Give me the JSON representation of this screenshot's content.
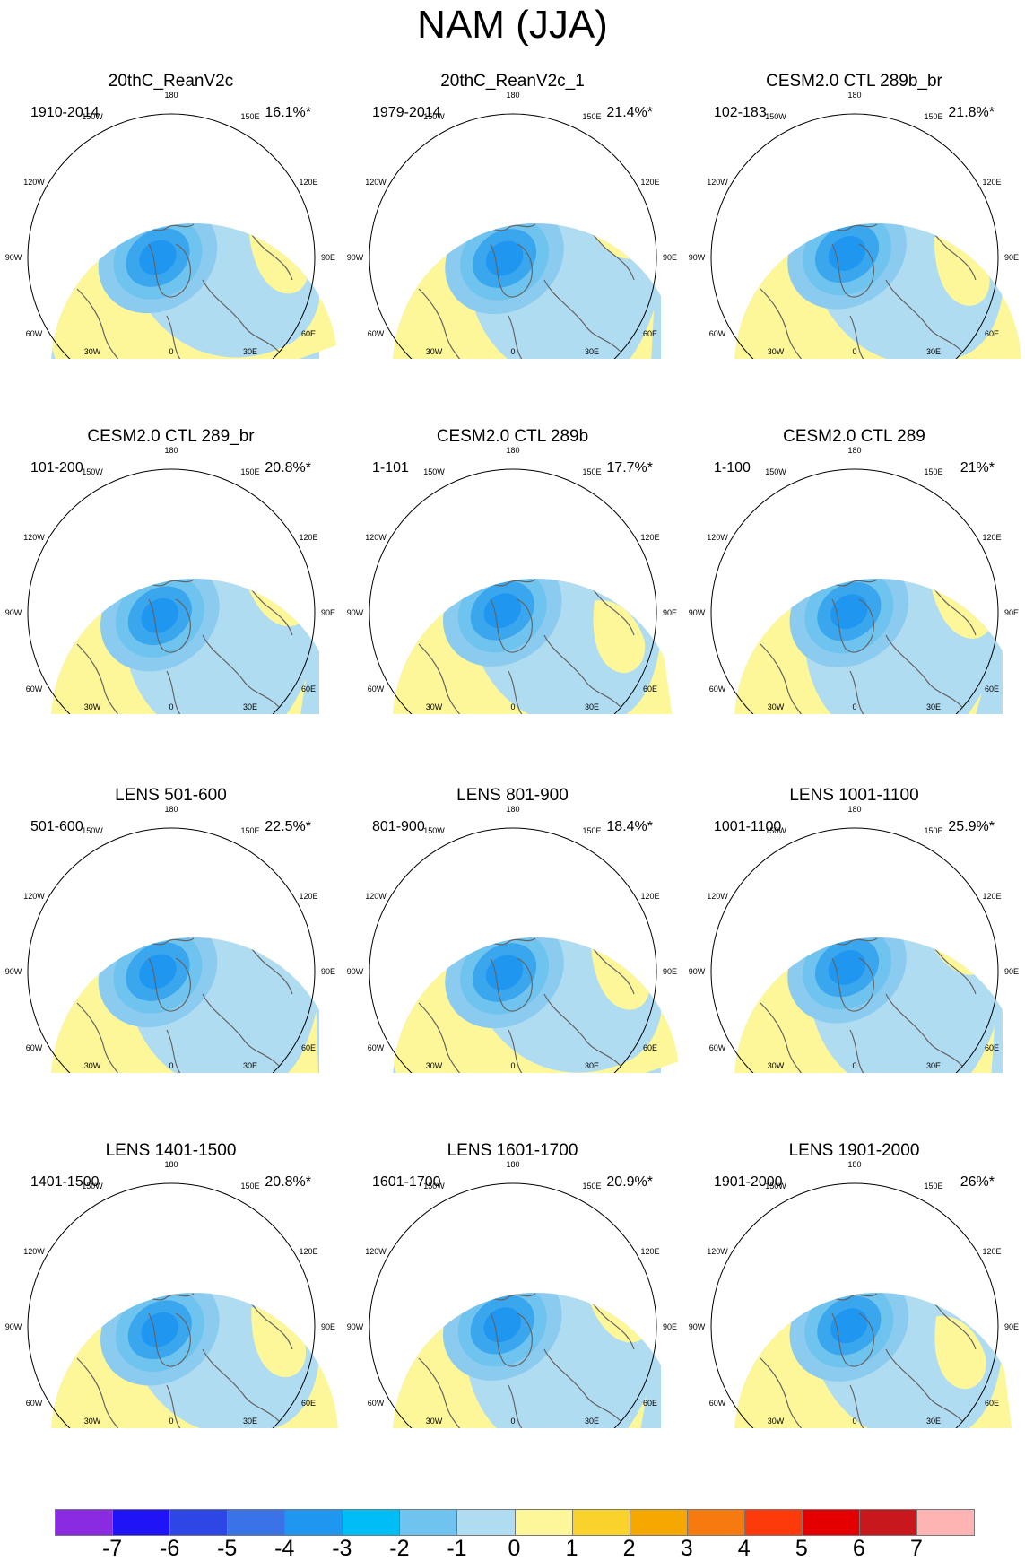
{
  "title": "NAM (JJA)",
  "chart_data": {
    "type": "heatmap",
    "projection": "north polar stereographic",
    "variable": "NAM (JJA)",
    "panels": [
      {
        "title": "20thC_ReanV2c",
        "period": "1910-2014",
        "variance": "16.1%*"
      },
      {
        "title": "20thC_ReanV2c_1",
        "period": "1979-2014",
        "variance": "21.4%*"
      },
      {
        "title": "CESM2.0 CTL 289b_br",
        "period": "102-183",
        "variance": "21.8%*"
      },
      {
        "title": "CESM2.0 CTL 289_br",
        "period": "101-200",
        "variance": "20.8%*"
      },
      {
        "title": "CESM2.0 CTL 289b",
        "period": "1-101",
        "variance": "17.7%*"
      },
      {
        "title": "CESM2.0 CTL 289",
        "period": "1-100",
        "variance": "21%*"
      },
      {
        "title": "LENS 501-600",
        "period": "501-600",
        "variance": "22.5%*"
      },
      {
        "title": "LENS 801-900",
        "period": "801-900",
        "variance": "18.4%*"
      },
      {
        "title": "LENS 1001-1100",
        "period": "1001-1100",
        "variance": "25.9%*"
      },
      {
        "title": "LENS 1401-1500",
        "period": "1401-1500",
        "variance": "20.8%*"
      },
      {
        "title": "LENS 1601-1700",
        "period": "1601-1700",
        "variance": "20.9%*"
      },
      {
        "title": "LENS 1901-2000",
        "period": "1901-2000",
        "variance": "26%*"
      }
    ],
    "map_labels": {
      "top": "180",
      "bottom": "0",
      "left": "90W",
      "right": "90E",
      "ul1": "150W",
      "ur1": "150E",
      "ul2": "120W",
      "ur2": "120E",
      "ll1": "60W",
      "lr1": "60E",
      "ll2": "30W",
      "lr2": "30E"
    },
    "colorbar": {
      "ticks": [
        "-7",
        "-6",
        "-5",
        "-4",
        "-3",
        "-2",
        "-1",
        "0",
        "1",
        "2",
        "3",
        "4",
        "5",
        "6",
        "7"
      ],
      "colors": [
        "#8a2be2",
        "#1e14f5",
        "#2e46e6",
        "#3a72e8",
        "#1f96f0",
        "#00bdf5",
        "#6fc4ef",
        "#b0dcf2",
        "#fdf79a",
        "#f9d22b",
        "#f7a800",
        "#f77a10",
        "#fd3a0a",
        "#e40000",
        "#c8181e",
        "#ffb4b4"
      ]
    },
    "colors": {
      "negative_fill": "#b0dcf2",
      "positive_fill": "#fdf79a",
      "coast": "#646464"
    }
  }
}
